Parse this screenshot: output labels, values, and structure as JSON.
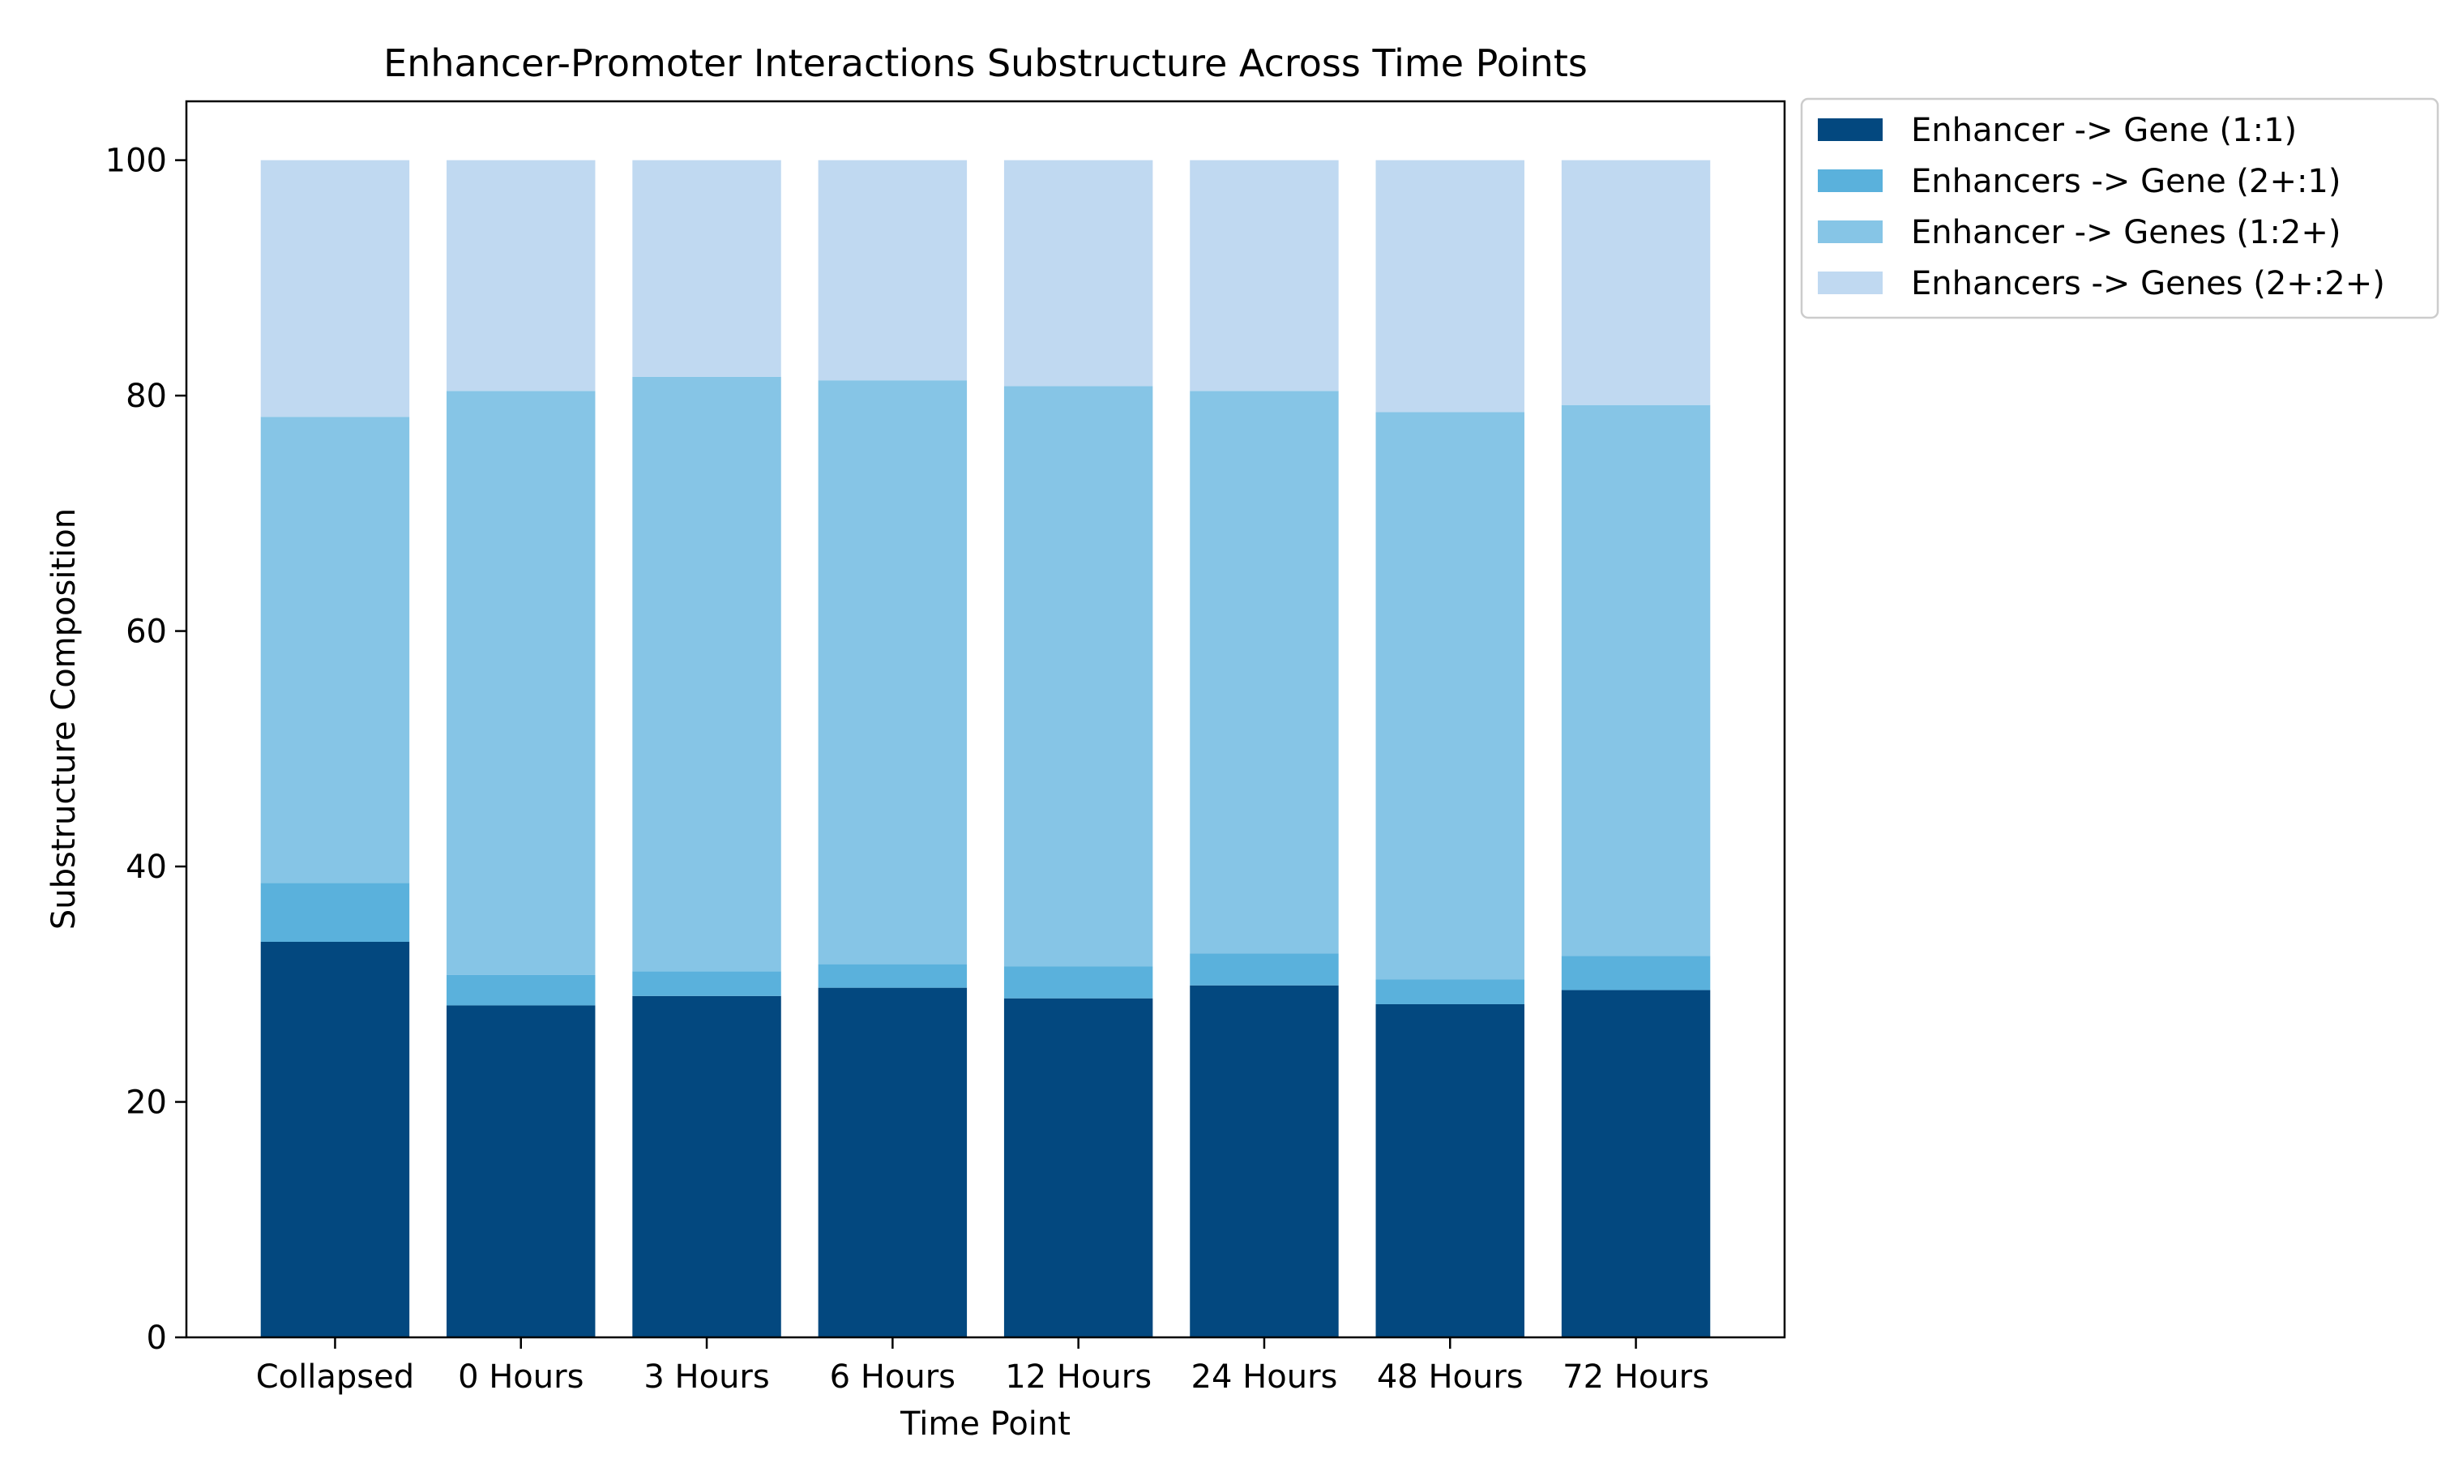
{
  "chart_data": {
    "type": "bar",
    "stacked": true,
    "title": "Enhancer-Promoter Interactions Substructure Across Time Points",
    "xlabel": "Time Point",
    "ylabel": "Substructure Composition",
    "ylim": [
      0,
      105
    ],
    "yticks": [
      0,
      20,
      40,
      60,
      80,
      100
    ],
    "grid": false,
    "legend_position": "outside-top-right",
    "categories": [
      "Collapsed",
      "0 Hours",
      "3 Hours",
      "6 Hours",
      "12 Hours",
      "24 Hours",
      "48 Hours",
      "72 Hours"
    ],
    "series": [
      {
        "name": "Enhancer -> Gene (1:1)",
        "color": "#03487f",
        "values": [
          33.6,
          28.2,
          29.0,
          29.7,
          28.8,
          29.9,
          28.3,
          29.5
        ]
      },
      {
        "name": "Enhancers -> Gene (2+:1)",
        "color": "#5ab1dc",
        "values": [
          5.0,
          2.6,
          2.1,
          2.0,
          2.7,
          2.7,
          2.1,
          2.9
        ]
      },
      {
        "name": "Enhancer -> Genes (1:2+)",
        "color": "#86c5e6",
        "values": [
          39.6,
          49.6,
          50.5,
          49.6,
          49.3,
          47.8,
          48.2,
          46.8
        ]
      },
      {
        "name": "Enhancers -> Genes (2+:2+)",
        "color": "#c0d9f1",
        "values": [
          21.8,
          19.6,
          18.4,
          18.7,
          19.2,
          19.6,
          21.4,
          20.8
        ]
      }
    ]
  }
}
